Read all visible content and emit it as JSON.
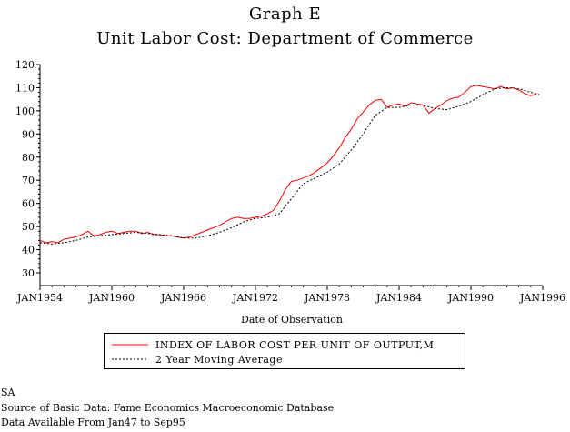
{
  "title": "Graph E",
  "subtitle": "Unit Labor Cost: Department of Commerce",
  "chart_data": {
    "type": "line",
    "xlabel": "Date of Observation",
    "ylabel": "",
    "ylim": [
      30,
      120
    ],
    "yticks": [
      30,
      40,
      50,
      60,
      70,
      80,
      90,
      100,
      110,
      120
    ],
    "xlim": [
      1954.0,
      1996.0
    ],
    "xticks": [
      {
        "label": "JAN1954",
        "value": 1954
      },
      {
        "label": "JAN1960",
        "value": 1960
      },
      {
        "label": "JAN1966",
        "value": 1966
      },
      {
        "label": "JAN1972",
        "value": 1972
      },
      {
        "label": "JAN1978",
        "value": 1978
      },
      {
        "label": "JAN1984",
        "value": 1984
      },
      {
        "label": "JAN1990",
        "value": 1990
      },
      {
        "label": "JAN1996",
        "value": 1996
      }
    ],
    "grid": false,
    "legend_position": "bottom",
    "series": [
      {
        "name": "INDEX OF LABOR COST PER UNIT OF OUTPUT,M",
        "color": "#ff0000",
        "style": "solid",
        "x": [
          1954.0,
          1954.5,
          1955.0,
          1955.5,
          1956.0,
          1956.5,
          1957.0,
          1957.5,
          1958.0,
          1958.5,
          1959.0,
          1959.5,
          1960.0,
          1960.5,
          1961.0,
          1961.5,
          1962.0,
          1962.5,
          1963.0,
          1963.5,
          1964.0,
          1964.5,
          1965.0,
          1965.5,
          1966.0,
          1966.5,
          1967.0,
          1967.5,
          1968.0,
          1968.5,
          1969.0,
          1969.5,
          1970.0,
          1970.5,
          1971.0,
          1971.5,
          1972.0,
          1972.5,
          1973.0,
          1973.5,
          1974.0,
          1974.5,
          1975.0,
          1975.5,
          1976.0,
          1976.5,
          1977.0,
          1977.5,
          1978.0,
          1978.5,
          1979.0,
          1979.5,
          1980.0,
          1980.5,
          1981.0,
          1981.5,
          1982.0,
          1982.5,
          1983.0,
          1983.5,
          1984.0,
          1984.5,
          1985.0,
          1985.5,
          1986.0,
          1986.5,
          1987.0,
          1987.5,
          1988.0,
          1988.5,
          1989.0,
          1989.5,
          1990.0,
          1990.5,
          1991.0,
          1991.5,
          1992.0,
          1992.5,
          1993.0,
          1993.5,
          1994.0,
          1994.5,
          1995.0,
          1995.5
        ],
        "values": [
          44.0,
          43.0,
          43.5,
          43.0,
          44.5,
          45.0,
          45.5,
          46.5,
          48.0,
          46.0,
          46.5,
          47.5,
          48.0,
          47.0,
          47.5,
          48.0,
          48.0,
          47.0,
          47.5,
          46.5,
          46.5,
          46.0,
          46.0,
          45.5,
          45.0,
          45.5,
          46.5,
          47.5,
          48.5,
          49.5,
          50.5,
          52.0,
          53.5,
          54.0,
          53.5,
          53.5,
          54.0,
          54.5,
          55.5,
          57.0,
          61.0,
          66.0,
          69.5,
          70.0,
          71.0,
          72.0,
          73.5,
          75.5,
          77.5,
          80.5,
          84.0,
          88.5,
          92.0,
          96.5,
          99.5,
          102.5,
          104.5,
          105.0,
          101.5,
          102.5,
          103.0,
          102.0,
          103.5,
          103.0,
          102.5,
          99.0,
          101.0,
          102.5,
          104.5,
          105.5,
          106.0,
          108.0,
          110.5,
          111.0,
          110.5,
          110.0,
          109.5,
          110.5,
          109.5,
          110.0,
          109.0,
          107.5,
          106.5,
          107.5
        ]
      },
      {
        "name": "2 Year Moving Average",
        "color": "#000000",
        "style": "dashed",
        "x": [
          1954.0,
          1955.0,
          1956.0,
          1957.0,
          1958.0,
          1959.0,
          1960.0,
          1961.0,
          1962.0,
          1963.0,
          1964.0,
          1965.0,
          1966.0,
          1967.0,
          1968.0,
          1969.0,
          1970.0,
          1971.0,
          1972.0,
          1973.0,
          1974.0,
          1975.0,
          1976.0,
          1977.0,
          1978.0,
          1979.0,
          1980.0,
          1981.0,
          1982.0,
          1983.0,
          1984.0,
          1985.0,
          1986.0,
          1987.0,
          1988.0,
          1989.0,
          1990.0,
          1991.0,
          1992.0,
          1993.0,
          1994.0,
          1995.0,
          1995.7
        ],
        "values": [
          43.0,
          42.5,
          43.0,
          44.0,
          45.5,
          46.0,
          46.5,
          47.0,
          47.5,
          47.0,
          46.5,
          46.0,
          45.0,
          45.0,
          46.0,
          47.5,
          49.5,
          52.0,
          53.5,
          54.0,
          55.5,
          62.0,
          68.5,
          71.0,
          73.5,
          77.0,
          83.0,
          90.0,
          98.0,
          101.5,
          101.5,
          102.5,
          102.5,
          101.0,
          100.5,
          102.0,
          104.0,
          107.0,
          109.5,
          110.0,
          109.5,
          108.0,
          107.0
        ]
      }
    ]
  },
  "footer": {
    "line1": "SA",
    "line2": "Source of Basic Data: Fame Economics Macroeconomic Database",
    "line3": "Data Available From Jan47 to Sep95"
  }
}
